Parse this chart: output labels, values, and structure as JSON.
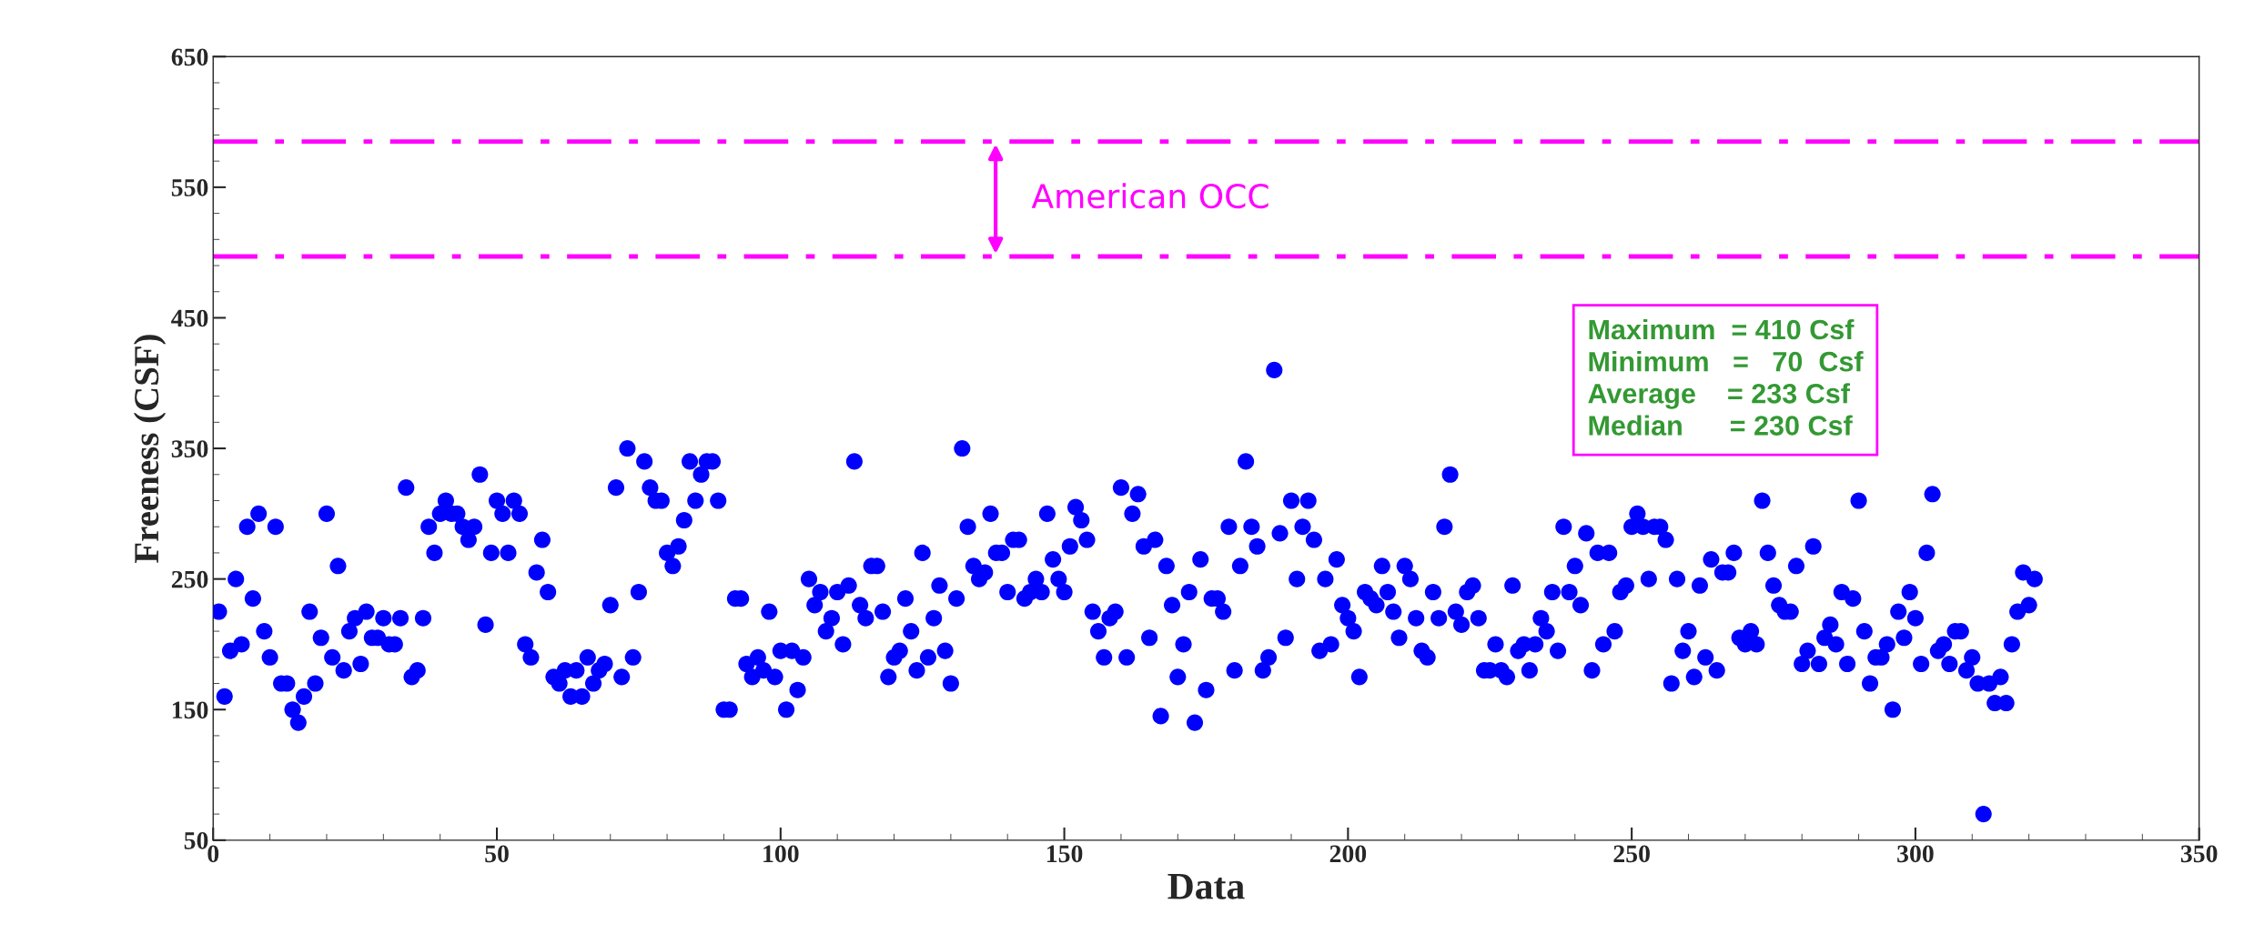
{
  "chart_data": {
    "type": "scatter",
    "xlabel": "Data",
    "ylabel": "Freeness (CSF)",
    "xlim": [
      0,
      350
    ],
    "xticks": [
      0,
      50,
      100,
      150,
      200,
      250,
      300,
      350
    ],
    "ylim": [
      50,
      650
    ],
    "yticks": [
      50,
      150,
      250,
      350,
      450,
      550,
      650
    ],
    "grid": false,
    "marker": "circle",
    "series": [
      {
        "color": "#0000ff",
        "x": [
          1,
          2,
          3,
          4,
          5,
          6,
          7,
          8,
          9,
          10,
          11,
          12,
          13,
          14,
          15,
          16,
          17,
          18,
          19,
          20,
          21,
          22,
          23,
          24,
          25,
          26,
          27,
          28,
          29,
          30,
          31,
          32,
          33,
          34,
          35,
          36,
          37,
          38,
          39,
          40,
          41,
          42,
          43,
          44,
          45,
          46,
          47,
          48,
          49,
          50,
          51,
          52,
          53,
          54,
          55,
          56,
          57,
          58,
          59,
          60,
          61,
          62,
          63,
          64,
          65,
          66,
          67,
          68,
          69,
          70,
          71,
          72,
          73,
          74,
          75,
          76,
          77,
          78,
          79,
          80,
          81,
          82,
          83,
          84,
          85,
          86,
          87,
          88,
          89,
          90,
          91,
          92,
          93,
          94,
          95,
          96,
          97,
          98,
          99,
          100,
          101,
          102,
          103,
          104,
          105,
          106,
          107,
          108,
          109,
          110,
          111,
          112,
          113,
          114,
          115,
          116,
          117,
          118,
          119,
          120,
          121,
          122,
          123,
          124,
          125,
          126,
          127,
          128,
          129,
          130,
          131,
          132,
          133,
          134,
          135,
          136,
          137,
          138,
          139,
          140,
          141,
          142,
          143,
          144,
          145,
          146,
          147,
          148,
          149,
          150,
          151,
          152,
          153,
          154,
          155,
          156,
          157,
          158,
          159,
          160,
          161,
          162,
          163,
          164,
          165,
          166,
          167,
          168,
          169,
          170,
          171,
          172,
          173,
          174,
          175,
          176,
          177,
          178,
          179,
          180,
          181,
          182,
          183,
          184,
          185,
          186,
          187,
          188,
          189,
          190,
          191,
          192,
          193,
          194,
          195,
          196,
          197,
          198,
          199,
          200,
          201,
          202,
          203,
          204,
          205,
          206,
          207,
          208,
          209,
          210,
          211,
          212,
          213,
          214,
          215,
          216,
          217,
          218,
          219,
          220,
          221,
          222,
          223,
          224,
          225,
          226,
          227,
          228,
          229,
          230,
          231,
          232,
          233,
          234,
          235,
          236,
          237,
          238,
          239,
          240,
          241,
          242,
          243,
          244,
          245,
          246,
          247,
          248,
          249,
          250,
          251,
          252,
          253,
          254,
          255,
          256,
          257,
          258,
          259,
          260,
          261,
          262,
          263,
          264,
          265,
          266,
          267,
          268,
          269,
          270,
          271,
          272,
          273,
          274,
          275,
          276,
          277,
          278,
          279,
          280,
          281,
          282,
          283,
          284,
          285,
          286,
          287,
          288,
          289,
          290,
          291,
          292,
          293,
          294,
          295,
          296,
          297,
          298,
          299,
          300,
          301,
          302,
          303,
          304,
          305,
          306,
          307,
          308,
          309,
          310,
          311,
          312,
          313,
          314,
          315,
          316,
          317,
          318,
          319,
          320,
          321
        ],
        "values": [
          225,
          160,
          195,
          250,
          200,
          290,
          235,
          300,
          210,
          190,
          290,
          170,
          170,
          150,
          140,
          160,
          225,
          170,
          205,
          300,
          190,
          260,
          180,
          210,
          220,
          185,
          225,
          205,
          205,
          220,
          200,
          200,
          220,
          320,
          175,
          180,
          220,
          290,
          270,
          300,
          310,
          300,
          300,
          290,
          280,
          290,
          330,
          215,
          270,
          310,
          300,
          270,
          310,
          300,
          200,
          190,
          255,
          280,
          240,
          175,
          170,
          180,
          160,
          180,
          160,
          190,
          170,
          180,
          185,
          230,
          320,
          175,
          350,
          190,
          240,
          340,
          320,
          310,
          310,
          270,
          260,
          275,
          295,
          340,
          310,
          330,
          340,
          340,
          310,
          150,
          150,
          235,
          235,
          185,
          175,
          190,
          180,
          225,
          175,
          195,
          150,
          195,
          165,
          190,
          250,
          230,
          240,
          210,
          220,
          240,
          200,
          245,
          340,
          230,
          220,
          260,
          260,
          225,
          175,
          190,
          195,
          235,
          210,
          180,
          270,
          190,
          220,
          245,
          195,
          170,
          235,
          350,
          290,
          260,
          250,
          255,
          300,
          270,
          270,
          240,
          280,
          280,
          235,
          240,
          250,
          240,
          300,
          265,
          250,
          240,
          275,
          305,
          295,
          280,
          225,
          210,
          190,
          220,
          225,
          320,
          190,
          300,
          315,
          275,
          205,
          280,
          145,
          260,
          230,
          175,
          200,
          240,
          140,
          265,
          165,
          235,
          235,
          225,
          290,
          180,
          260,
          340,
          290,
          275,
          180,
          190,
          410,
          285,
          205,
          310,
          250,
          290,
          310,
          280,
          195,
          250,
          200,
          265,
          230,
          220,
          210,
          175,
          240,
          235,
          230,
          260,
          240,
          225,
          205,
          260,
          250,
          220,
          195,
          190,
          240,
          220,
          290,
          330,
          225,
          215,
          240,
          245,
          220,
          180,
          180,
          200,
          180,
          175,
          245,
          195,
          200,
          180,
          200,
          220,
          210,
          240,
          195,
          290,
          240,
          260,
          230,
          285,
          180,
          270,
          200,
          270,
          210,
          240,
          245,
          290,
          300,
          290,
          250,
          290,
          290,
          280,
          170,
          250,
          195,
          210,
          175,
          245,
          190,
          265,
          180,
          255,
          255,
          270,
          205,
          200,
          210,
          200,
          310,
          270,
          245,
          230,
          225,
          225,
          260,
          185,
          195,
          275,
          185,
          205,
          215,
          200,
          240,
          185,
          235,
          310,
          210,
          170,
          190,
          190,
          200,
          150,
          225,
          205,
          240,
          220,
          185,
          270,
          315,
          195,
          200,
          185,
          210,
          210,
          180,
          190,
          170,
          70,
          170,
          155,
          175,
          155,
          200,
          225,
          255,
          230,
          250
        ]
      }
    ],
    "ref_lines": [
      {
        "axis": "y",
        "value": 585,
        "color": "#ff00ff",
        "line_style": "dashdot"
      },
      {
        "axis": "y",
        "value": 497,
        "color": "#ff00ff",
        "line_style": "dashdot"
      }
    ],
    "annotations": [
      "American OCC",
      "Maximum  = 410 Csf",
      "Minimum   =   70  Csf",
      "Average    = 233 Csf",
      "Median      = 230 Csf"
    ]
  }
}
